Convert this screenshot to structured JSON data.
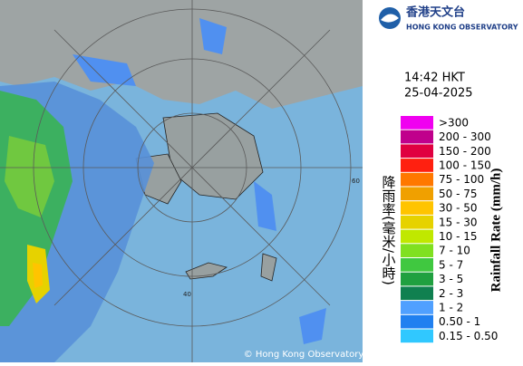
{
  "header": {
    "title_zh": "香港天文台",
    "title_en": "HONG KONG OBSERVATORY"
  },
  "timestamp": {
    "time": "14:42 HKT",
    "date": "25-04-2025"
  },
  "legend": {
    "title_zh": "降雨率(毫米/小時)",
    "title_en": "Rainfall Rate (mm/h)",
    "items": [
      {
        "label": ">300",
        "color": "#f000f0"
      },
      {
        "label": "200 - 300",
        "color": "#c0008c"
      },
      {
        "label": "150 - 200",
        "color": "#e00040"
      },
      {
        "label": "100 - 150",
        "color": "#ff2010"
      },
      {
        "label": "75 - 100",
        "color": "#ff7800"
      },
      {
        "label": "50 - 75",
        "color": "#f0a000"
      },
      {
        "label": "30 - 50",
        "color": "#ffc400"
      },
      {
        "label": "15 - 30",
        "color": "#e6d200"
      },
      {
        "label": "10 - 15",
        "color": "#c0e800"
      },
      {
        "label": "7 - 10",
        "color": "#80e020"
      },
      {
        "label": "5 - 7",
        "color": "#40c840"
      },
      {
        "label": "3 - 5",
        "color": "#20a040"
      },
      {
        "label": "2 - 3",
        "color": "#108050"
      },
      {
        "label": "1 - 2",
        "color": "#50a0ff"
      },
      {
        "label": "0.50 - 1",
        "color": "#2080f0"
      },
      {
        "label": "0.15 - 0.50",
        "color": "#30c8ff"
      }
    ]
  },
  "map": {
    "ring_labels": [
      "60",
      "40"
    ]
  },
  "footer": {
    "copyright": "© Hong Kong Observatory"
  }
}
